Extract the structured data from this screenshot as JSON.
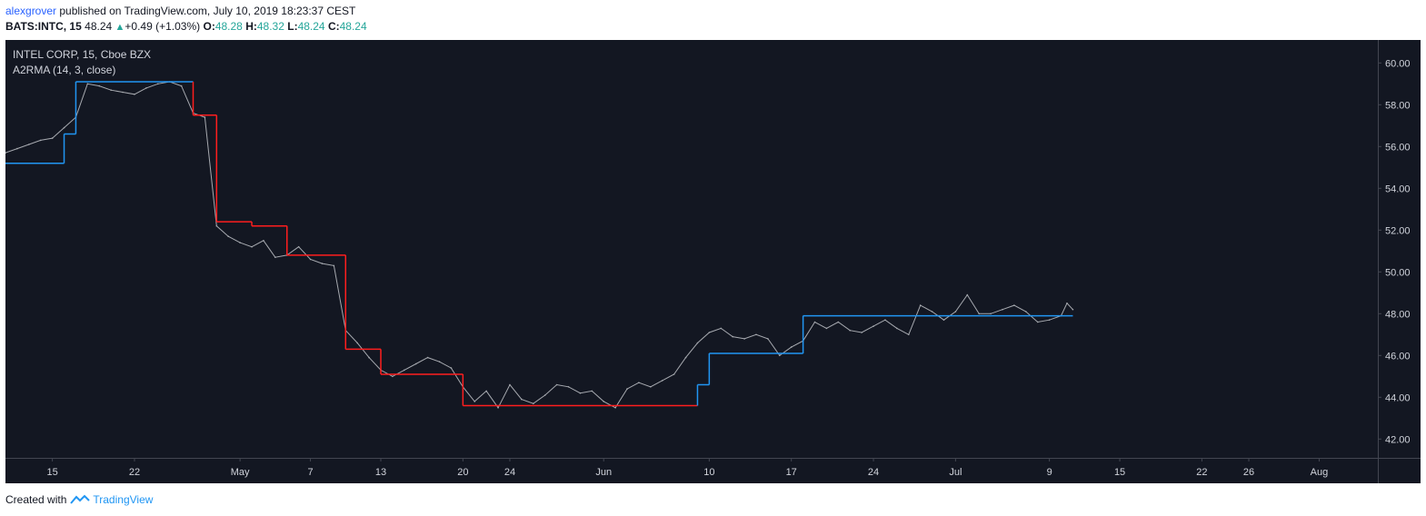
{
  "header": {
    "user": "alexgrover",
    "published": " published on TradingView.com, July 10, 2019 18:23:37 CEST",
    "symbol": "BATS:INTC, 15",
    "last": "48.24",
    "change": "+0.49 (+1.03%)",
    "o_label": "O:",
    "o_value": "48.28",
    "h_label": "H:",
    "h_value": "48.32",
    "l_label": "L:",
    "l_value": "48.24",
    "c_label": "C:",
    "c_value": "48.24"
  },
  "legend": {
    "title": "INTEL CORP, 15, Cboe BZX",
    "indicator": "A2RMA (14, 3, close)"
  },
  "footer": {
    "created_with": "Created with",
    "brand": "TradingView"
  },
  "colors": {
    "background": "#131722",
    "price": "#a7aab0",
    "indicator_up": "#2196f3",
    "indicator_down": "#ff1e1e",
    "up": "#26a69a",
    "brand": "#2196f3",
    "user": "#2962ff"
  },
  "chart_data": {
    "type": "line",
    "title": "INTEL CORP, 15, Cboe BZX",
    "xlabel": "",
    "ylabel": "",
    "ylim": [
      41.1,
      61.1
    ],
    "yticks": [
      "42.00",
      "44.00",
      "46.00",
      "48.00",
      "50.00",
      "52.00",
      "54.00",
      "56.00",
      "58.00",
      "60.00"
    ],
    "xticks": [
      "15",
      "22",
      "May",
      "7",
      "13",
      "20",
      "24",
      "Jun",
      "10",
      "17",
      "24",
      "Jul",
      "9",
      "15",
      "22",
      "26",
      "Aug"
    ],
    "xtick_dates": [
      "2019-04-15",
      "2019-04-22",
      "2019-05-01",
      "2019-05-07",
      "2019-05-13",
      "2019-05-20",
      "2019-05-24",
      "2019-06-01",
      "2019-06-10",
      "2019-06-17",
      "2019-06-24",
      "2019-07-01",
      "2019-07-09",
      "2019-07-15",
      "2019-07-22",
      "2019-07-26",
      "2019-08-01"
    ],
    "xlim": [
      "2019-04-11",
      "2019-08-06"
    ],
    "grid": false,
    "series": [
      {
        "name": "INTEL CORP",
        "style": "price",
        "points": [
          [
            "2019-04-11",
            55.7
          ],
          [
            "2019-04-12",
            55.9
          ],
          [
            "2019-04-13",
            56.1
          ],
          [
            "2019-04-14",
            56.3
          ],
          [
            "2019-04-15",
            56.4
          ],
          [
            "2019-04-16",
            56.9
          ],
          [
            "2019-04-17",
            57.4
          ],
          [
            "2019-04-18",
            59.0
          ],
          [
            "2019-04-19",
            58.9
          ],
          [
            "2019-04-20",
            58.7
          ],
          [
            "2019-04-21",
            58.6
          ],
          [
            "2019-04-22",
            58.5
          ],
          [
            "2019-04-23",
            58.8
          ],
          [
            "2019-04-24",
            59.0
          ],
          [
            "2019-04-25",
            59.1
          ],
          [
            "2019-04-26",
            58.9
          ],
          [
            "2019-04-27",
            57.6
          ],
          [
            "2019-04-28",
            57.4
          ],
          [
            "2019-04-29",
            52.2
          ],
          [
            "2019-04-30",
            51.7
          ],
          [
            "2019-05-01",
            51.4
          ],
          [
            "2019-05-02",
            51.2
          ],
          [
            "2019-05-03",
            51.5
          ],
          [
            "2019-05-04",
            50.7
          ],
          [
            "2019-05-05",
            50.8
          ],
          [
            "2019-05-06",
            51.2
          ],
          [
            "2019-05-07",
            50.6
          ],
          [
            "2019-05-08",
            50.4
          ],
          [
            "2019-05-09",
            50.3
          ],
          [
            "2019-05-10",
            47.2
          ],
          [
            "2019-05-11",
            46.6
          ],
          [
            "2019-05-12",
            45.9
          ],
          [
            "2019-05-13",
            45.3
          ],
          [
            "2019-05-14",
            45.0
          ],
          [
            "2019-05-15",
            45.3
          ],
          [
            "2019-05-16",
            45.6
          ],
          [
            "2019-05-17",
            45.9
          ],
          [
            "2019-05-18",
            45.7
          ],
          [
            "2019-05-19",
            45.4
          ],
          [
            "2019-05-20",
            44.5
          ],
          [
            "2019-05-21",
            43.8
          ],
          [
            "2019-05-22",
            44.3
          ],
          [
            "2019-05-23",
            43.5
          ],
          [
            "2019-05-24",
            44.6
          ],
          [
            "2019-05-25",
            43.9
          ],
          [
            "2019-05-26",
            43.7
          ],
          [
            "2019-05-27",
            44.1
          ],
          [
            "2019-05-28",
            44.6
          ],
          [
            "2019-05-29",
            44.5
          ],
          [
            "2019-05-30",
            44.2
          ],
          [
            "2019-05-31",
            44.3
          ],
          [
            "2019-06-01",
            43.8
          ],
          [
            "2019-06-02",
            43.5
          ],
          [
            "2019-06-03",
            44.4
          ],
          [
            "2019-06-04",
            44.7
          ],
          [
            "2019-06-05",
            44.5
          ],
          [
            "2019-06-06",
            44.8
          ],
          [
            "2019-06-07",
            45.1
          ],
          [
            "2019-06-08",
            45.9
          ],
          [
            "2019-06-09",
            46.6
          ],
          [
            "2019-06-10",
            47.1
          ],
          [
            "2019-06-11",
            47.3
          ],
          [
            "2019-06-12",
            46.9
          ],
          [
            "2019-06-13",
            46.8
          ],
          [
            "2019-06-14",
            47.0
          ],
          [
            "2019-06-15",
            46.8
          ],
          [
            "2019-06-16",
            46.0
          ],
          [
            "2019-06-17",
            46.4
          ],
          [
            "2019-06-18",
            46.7
          ],
          [
            "2019-06-19",
            47.6
          ],
          [
            "2019-06-20",
            47.3
          ],
          [
            "2019-06-21",
            47.6
          ],
          [
            "2019-06-22",
            47.2
          ],
          [
            "2019-06-23",
            47.1
          ],
          [
            "2019-06-24",
            47.4
          ],
          [
            "2019-06-25",
            47.7
          ],
          [
            "2019-06-26",
            47.3
          ],
          [
            "2019-06-27",
            47.0
          ],
          [
            "2019-06-28",
            48.4
          ],
          [
            "2019-06-29",
            48.1
          ],
          [
            "2019-06-30",
            47.7
          ],
          [
            "2019-07-01",
            48.1
          ],
          [
            "2019-07-02",
            48.9
          ],
          [
            "2019-07-03",
            48.0
          ],
          [
            "2019-07-04",
            48.0
          ],
          [
            "2019-07-05",
            48.2
          ],
          [
            "2019-07-06",
            48.4
          ],
          [
            "2019-07-07",
            48.1
          ],
          [
            "2019-07-08",
            47.6
          ],
          [
            "2019-07-09",
            47.7
          ],
          [
            "2019-07-10",
            47.9
          ],
          [
            "2019-07-10.5",
            48.5
          ],
          [
            "2019-07-11",
            48.2
          ]
        ]
      },
      {
        "name": "A2RMA (14, 3, close)",
        "style": "indicator",
        "segments": [
          {
            "from": "2019-04-11",
            "to": "2019-04-16",
            "value": 55.2,
            "color": "up"
          },
          {
            "from": "2019-04-16",
            "to": "2019-04-17",
            "value": 56.6,
            "color": "up"
          },
          {
            "from": "2019-04-17",
            "to": "2019-04-27",
            "value": 59.1,
            "color": "up"
          },
          {
            "from": "2019-04-27",
            "to": "2019-04-29",
            "value": 57.5,
            "color": "down"
          },
          {
            "from": "2019-04-29",
            "to": "2019-05-02",
            "value": 52.4,
            "color": "down"
          },
          {
            "from": "2019-05-02",
            "to": "2019-05-05",
            "value": 52.2,
            "color": "down"
          },
          {
            "from": "2019-05-05",
            "to": "2019-05-10",
            "value": 50.8,
            "color": "down"
          },
          {
            "from": "2019-05-10",
            "to": "2019-05-13",
            "value": 46.3,
            "color": "down"
          },
          {
            "from": "2019-05-13",
            "to": "2019-05-20",
            "value": 45.1,
            "color": "down"
          },
          {
            "from": "2019-05-20",
            "to": "2019-06-09",
            "value": 43.6,
            "color": "down"
          },
          {
            "from": "2019-06-09",
            "to": "2019-06-10",
            "value": 44.6,
            "color": "up"
          },
          {
            "from": "2019-06-10",
            "to": "2019-06-18",
            "value": 46.1,
            "color": "up"
          },
          {
            "from": "2019-06-18",
            "to": "2019-07-11",
            "value": 47.9,
            "color": "up"
          }
        ]
      }
    ]
  }
}
